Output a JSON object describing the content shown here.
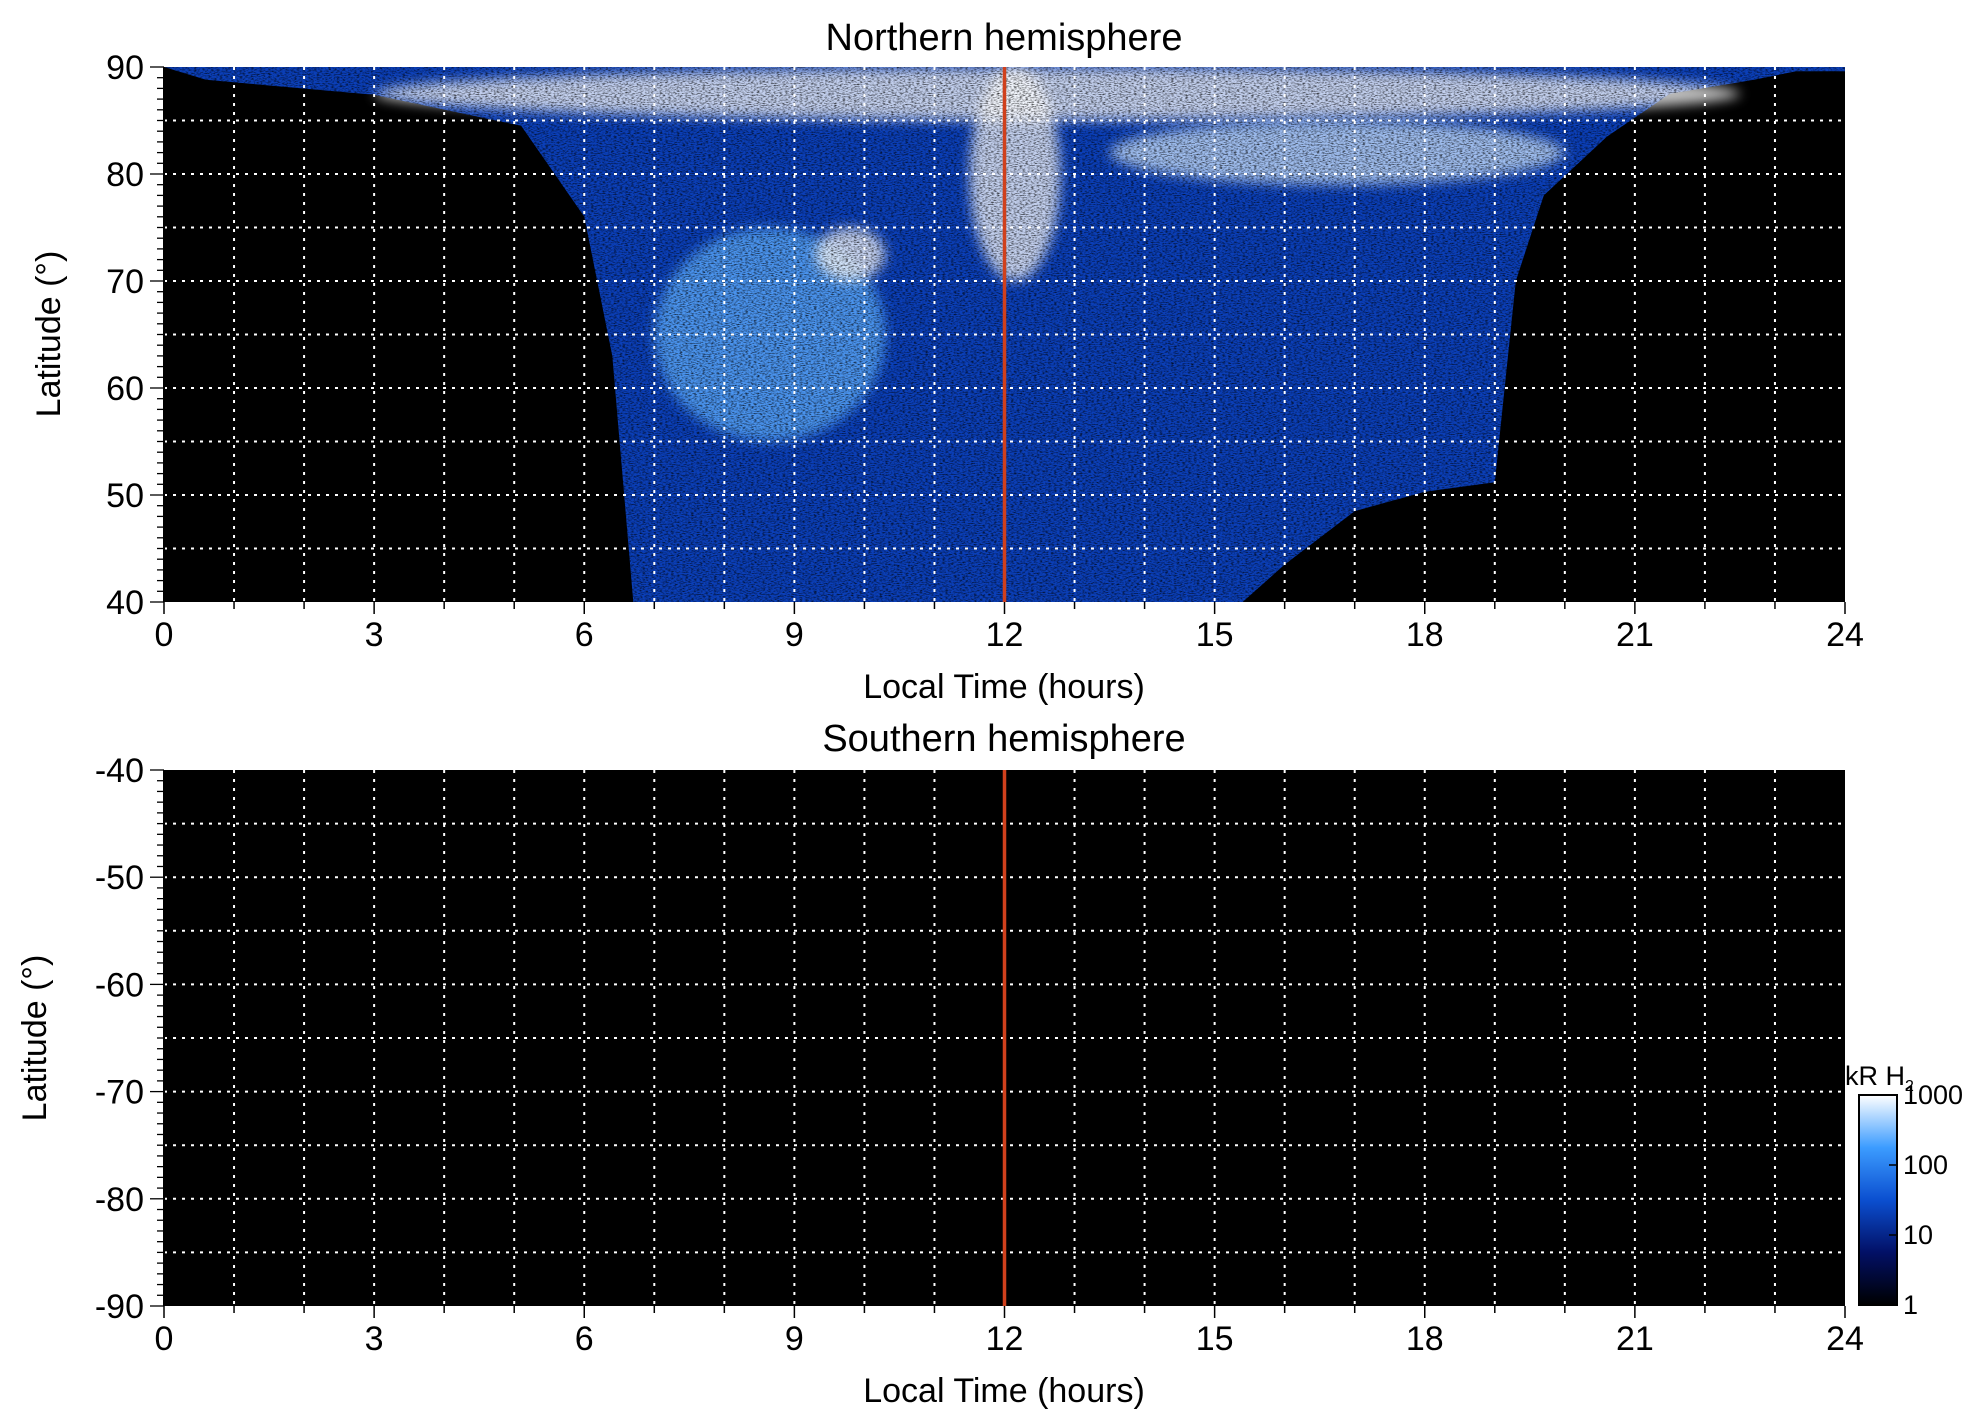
{
  "chart_data": [
    {
      "type": "heatmap",
      "title": "Northern hemisphere",
      "xlabel": "Local Time (hours)",
      "ylabel": "Latitude (°)",
      "xlim": [
        0,
        24
      ],
      "ylim": [
        40,
        90
      ],
      "xticks": [
        "0",
        "3",
        "6",
        "9",
        "12",
        "15",
        "18",
        "21",
        "24"
      ],
      "yticks": [
        "40",
        "50",
        "60",
        "70",
        "80",
        "90"
      ],
      "grid": true,
      "reference_line": {
        "x": 12,
        "color": "#d0401c"
      },
      "coverage_boundary": {
        "x": [
          0.6,
          3,
          5.1,
          6.0,
          6.4,
          6.7,
          7.1,
          15.4,
          16.0,
          17.0,
          18.0,
          19.0,
          19.3,
          19.7,
          20.6,
          21.5,
          22.7,
          23.3
        ],
        "lat": [
          88.8,
          87.4,
          84.5,
          76,
          63,
          40,
          40,
          40,
          43.5,
          48.5,
          50.3,
          51.2,
          70,
          78,
          83.5,
          87.5,
          88.8,
          89.6
        ]
      },
      "features": [
        {
          "name": "polar cap emission",
          "x": [
            3,
            22.5
          ],
          "lat": [
            85,
            90
          ],
          "level_kR": 1000
        },
        {
          "name": "dawn arc",
          "x": [
            7,
            10.3
          ],
          "lat": [
            55,
            75
          ],
          "level_kR": 500
        },
        {
          "name": "bright spot",
          "x": [
            9.3,
            10.3
          ],
          "lat": [
            70,
            75
          ],
          "level_kR": 1000
        },
        {
          "name": "noon cusp",
          "x": [
            11.5,
            12.8
          ],
          "lat": [
            70,
            90
          ],
          "level_kR": 1000
        },
        {
          "name": "afternoon arc",
          "x": [
            13.5,
            20
          ],
          "lat": [
            79,
            85
          ],
          "level_kR": 600
        }
      ]
    },
    {
      "type": "heatmap",
      "title": "Southern hemisphere",
      "xlabel": "Local Time (hours)",
      "ylabel": "Latitude (°)",
      "xlim": [
        0,
        24
      ],
      "ylim": [
        -90,
        -40
      ],
      "xticks": [
        "0",
        "3",
        "6",
        "9",
        "12",
        "15",
        "18",
        "21",
        "24"
      ],
      "yticks": [
        "-40",
        "-50",
        "-60",
        "-70",
        "-80",
        "-90"
      ],
      "grid": true,
      "reference_line": {
        "x": 12,
        "color": "#d0401c"
      },
      "features": []
    }
  ],
  "colorbar": {
    "label": "kR H",
    "label_sub": "2",
    "scale": "log",
    "range": [
      1,
      1000
    ],
    "ticks": [
      "1000",
      "100",
      "10",
      "1"
    ],
    "colors": [
      "#000000",
      "#021066",
      "#0b4fd0",
      "#3c9cff",
      "#ffffff"
    ]
  }
}
